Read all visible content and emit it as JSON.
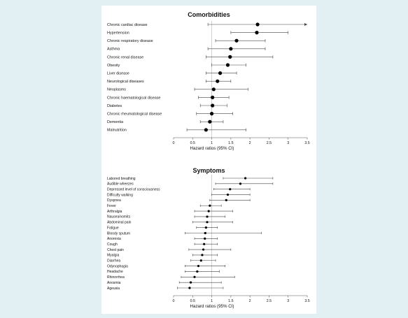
{
  "chart_data": [
    {
      "type": "forest",
      "title": "Comorbidities",
      "xlabel": "Hazard ratios (95% CI)",
      "xlim": [
        0,
        3.5
      ],
      "xticks": [
        0,
        0.5,
        1,
        1.5,
        2,
        2.5,
        3,
        3.5
      ],
      "reference_line": 1,
      "categories": [
        "Chronic cardiac disease",
        "Hypertension",
        "Chronic respiratory disease",
        "Asthma",
        "Chronic renal disease",
        "Obesity",
        "Liver disease",
        "Neurological diseases",
        "Neoplasms",
        "Chronic haematological disease",
        "Diabetes",
        "Chronic rheumatological disease",
        "Dementia",
        "Malnutrition"
      ],
      "estimates": [
        2.2,
        2.18,
        1.65,
        1.5,
        1.48,
        1.42,
        1.22,
        1.15,
        1.05,
        1.02,
        1.02,
        1.0,
        0.95,
        0.85
      ],
      "ci_low": [
        0.9,
        1.5,
        1.1,
        0.9,
        0.85,
        1.0,
        0.85,
        0.85,
        0.55,
        0.65,
        0.7,
        0.6,
        0.7,
        0.35
      ],
      "ci_high": [
        3.5,
        3.0,
        2.4,
        2.4,
        2.6,
        1.9,
        1.65,
        1.5,
        1.95,
        1.45,
        1.4,
        1.55,
        1.3,
        1.9
      ],
      "arrow_right": [
        true,
        false,
        false,
        false,
        false,
        false,
        false,
        false,
        false,
        false,
        false,
        false,
        false,
        false
      ]
    },
    {
      "type": "forest",
      "title": "Symptoms",
      "xlabel": "Hazard ratios (95% CI)",
      "xlim": [
        0,
        3.5
      ],
      "xticks": [
        0,
        0.5,
        1,
        1.5,
        2,
        2.5,
        3,
        3.5
      ],
      "reference_line": 1,
      "categories": [
        "Labored breathing",
        "Audible wheezes",
        "Depressed level of consciousness",
        "Difficulty walking",
        "Dyspnea",
        "Fever",
        "Arthralgia",
        "Nausea/vomits",
        "Abdominal pain",
        "Fatigue",
        "Bloody sputum",
        "Anorexia",
        "Cough",
        "Chest pain",
        "Myalgia",
        "Diarrhea",
        "Odynophagia",
        "Headache",
        "Rhinorrhea",
        "Anosmia",
        "Ageusia"
      ],
      "estimates": [
        1.88,
        1.75,
        1.48,
        1.42,
        1.38,
        0.95,
        0.92,
        0.88,
        0.88,
        0.85,
        0.83,
        0.82,
        0.8,
        0.78,
        0.75,
        0.72,
        0.65,
        0.62,
        0.55,
        0.45,
        0.42
      ],
      "ci_low": [
        1.3,
        1.1,
        1.05,
        1.0,
        0.95,
        0.7,
        0.55,
        0.55,
        0.5,
        0.6,
        0.3,
        0.55,
        0.55,
        0.4,
        0.5,
        0.45,
        0.3,
        0.3,
        0.2,
        0.15,
        0.1
      ],
      "ci_high": [
        2.6,
        2.6,
        2.0,
        2.0,
        2.0,
        1.25,
        1.55,
        1.35,
        1.55,
        1.15,
        2.3,
        1.15,
        1.15,
        1.5,
        1.15,
        1.1,
        1.35,
        1.2,
        1.6,
        1.25,
        1.3
      ],
      "arrow_right": [
        false,
        false,
        false,
        false,
        false,
        false,
        false,
        false,
        false,
        false,
        false,
        false,
        false,
        false,
        false,
        false,
        false,
        false,
        false,
        false,
        false
      ]
    }
  ]
}
